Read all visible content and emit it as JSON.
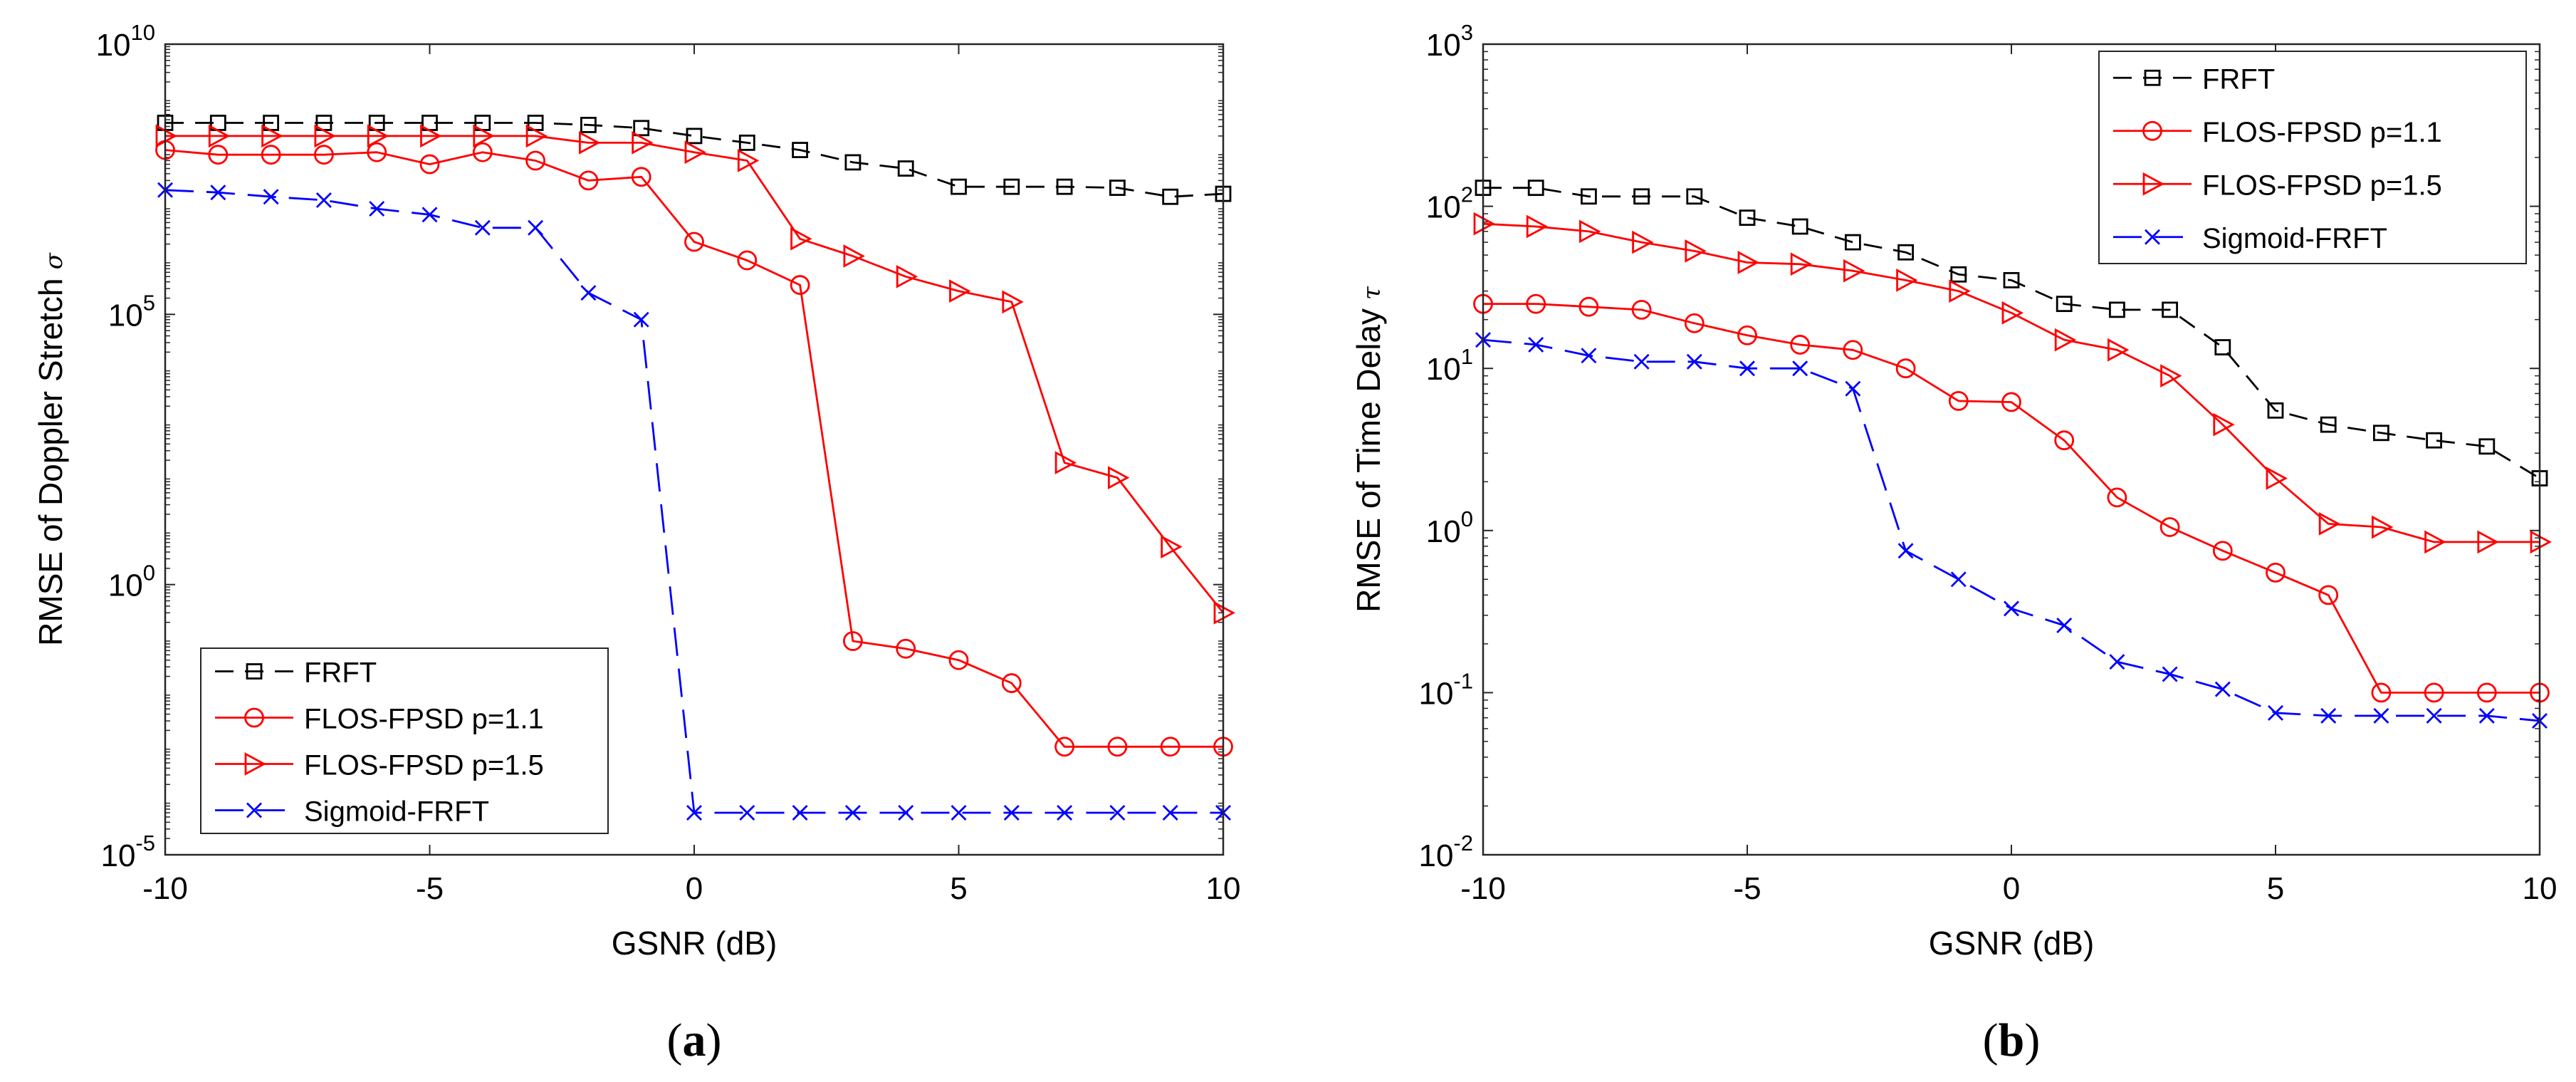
{
  "chart_data": [
    {
      "type": "line",
      "panel_label": "(a)",
      "xlabel": "GSNR (dB)",
      "ylabel": "RMSE of Doppler Stretch",
      "ylabel_symbol": "σ",
      "yscale": "log",
      "xlim": [
        -10,
        10
      ],
      "ylim_exp": [
        -5,
        10
      ],
      "xticks": [
        -10,
        -5,
        0,
        5,
        10
      ],
      "yticks_exp": [
        -5,
        0,
        5,
        10
      ],
      "legend_position": "bottom-left",
      "x": [
        -10,
        -9,
        -8,
        -7,
        -6,
        -5,
        -4,
        -3,
        -2,
        -1,
        0,
        1,
        2,
        3,
        4,
        5,
        6,
        7,
        8,
        9,
        10
      ],
      "series": [
        {
          "name": "FRFT",
          "color": "#000000",
          "dash": "dash",
          "marker": "square",
          "values": [
            350000000.0,
            350000000.0,
            350000000.0,
            350000000.0,
            350000000.0,
            350000000.0,
            350000000.0,
            350000000.0,
            320000000.0,
            280000000.0,
            200000000.0,
            150000000.0,
            110000000.0,
            65000000.0,
            50000000.0,
            23000000.0,
            23000000.0,
            23000000.0,
            22000000.0,
            15000000.0,
            17000000.0
          ]
        },
        {
          "name": "FLOS-FPSD p=1.1",
          "color": "#ff0000",
          "dash": "solid",
          "marker": "circle",
          "values": [
            110000000.0,
            90000000.0,
            90000000.0,
            90000000.0,
            100000000.0,
            60000000.0,
            100000000.0,
            70000000.0,
            30000000.0,
            35000000.0,
            2200000.0,
            1000000.0,
            350000.0,
            0.09,
            0.065,
            0.04,
            0.015,
            0.001,
            0.001,
            0.001,
            0.001
          ]
        },
        {
          "name": "FLOS-FPSD p=1.5",
          "color": "#ff0000",
          "dash": "solid",
          "marker": "triangle-right",
          "values": [
            200000000.0,
            200000000.0,
            200000000.0,
            200000000.0,
            200000000.0,
            200000000.0,
            200000000.0,
            200000000.0,
            150000000.0,
            150000000.0,
            100000000.0,
            70000000.0,
            2500000.0,
            1200000.0,
            500000.0,
            270000.0,
            170000.0,
            180,
            95,
            5,
            0.3
          ]
        },
        {
          "name": "Sigmoid-FRFT",
          "color": "#0000ff",
          "dash": "longdash",
          "marker": "x",
          "values": [
            20000000.0,
            18000000.0,
            15000000.0,
            13000000.0,
            9000000.0,
            7000000.0,
            4000000.0,
            4000000.0,
            250000.0,
            80000.0,
            6e-05,
            6e-05,
            6e-05,
            6e-05,
            6e-05,
            6e-05,
            6e-05,
            6e-05,
            6e-05,
            6e-05,
            6e-05
          ]
        }
      ]
    },
    {
      "type": "line",
      "panel_label": "(b)",
      "xlabel": "GSNR (dB)",
      "ylabel": "RMSE of Time Delay",
      "ylabel_symbol": "τ",
      "yscale": "log",
      "xlim": [
        -10,
        10
      ],
      "ylim_exp": [
        -2,
        3
      ],
      "xticks": [
        -10,
        -5,
        0,
        5,
        10
      ],
      "yticks_exp": [
        -2,
        -1,
        0,
        1,
        2,
        3
      ],
      "legend_position": "top-right",
      "x": [
        -10,
        -9,
        -8,
        -7,
        -6,
        -5,
        -4,
        -3,
        -2,
        -1,
        0,
        1,
        2,
        3,
        4,
        5,
        6,
        7,
        8,
        9,
        10
      ],
      "series": [
        {
          "name": "FRFT",
          "color": "#000000",
          "dash": "dash",
          "marker": "square",
          "values": [
            130,
            130,
            115,
            115,
            115,
            85,
            75,
            60,
            52,
            38,
            35,
            25,
            23,
            23,
            13.5,
            5.5,
            4.5,
            4.0,
            3.6,
            3.3,
            2.1
          ]
        },
        {
          "name": "FLOS-FPSD p=1.1",
          "color": "#ff0000",
          "dash": "solid",
          "marker": "circle",
          "values": [
            25,
            25,
            24,
            23,
            19,
            16,
            14,
            13,
            10,
            6.3,
            6.2,
            3.6,
            1.6,
            1.05,
            0.75,
            0.55,
            0.4,
            0.1,
            0.1,
            0.1,
            0.1
          ]
        },
        {
          "name": "FLOS-FPSD p=1.5",
          "color": "#ff0000",
          "dash": "solid",
          "marker": "triangle-right",
          "values": [
            78,
            75,
            70,
            60,
            53,
            45,
            44,
            40,
            35,
            30,
            22,
            15,
            13,
            9,
            4.5,
            2.1,
            1.1,
            1.05,
            0.85,
            0.85,
            0.85
          ]
        },
        {
          "name": "Sigmoid-FRFT",
          "color": "#0000ff",
          "dash": "longdash",
          "marker": "x",
          "values": [
            15,
            14,
            12,
            11,
            11,
            10,
            10,
            7.5,
            0.75,
            0.5,
            0.33,
            0.26,
            0.155,
            0.13,
            0.105,
            0.075,
            0.072,
            0.072,
            0.072,
            0.072,
            0.067
          ]
        }
      ]
    }
  ]
}
